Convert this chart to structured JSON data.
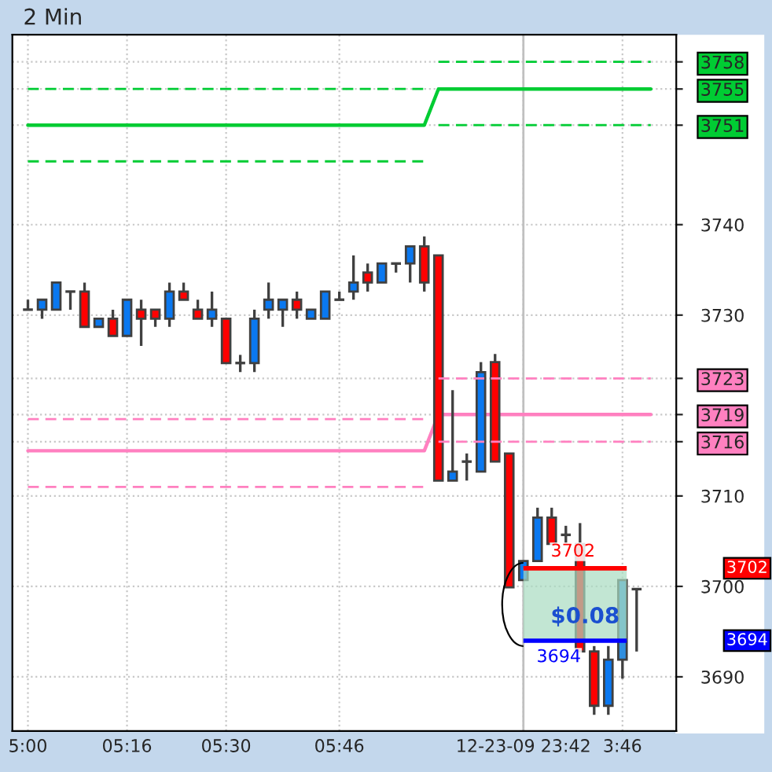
{
  "chart_data": {
    "type": "candlestick",
    "title": "2 Min",
    "categories": [
      "5:00",
      null,
      null,
      null,
      null,
      null,
      null,
      "05:16",
      null,
      null,
      null,
      null,
      null,
      null,
      "05:30",
      null,
      null,
      null,
      null,
      null,
      null,
      null,
      "05:46",
      null,
      null,
      null,
      null,
      null,
      null,
      null,
      null,
      null,
      null,
      null,
      null,
      "12-23-09 23:42",
      null,
      null,
      null,
      null,
      null,
      null,
      "3:46",
      null,
      null
    ],
    "ohlc": [
      [
        3730.6,
        3731.7,
        3730.6,
        3730.6
      ],
      [
        3730.6,
        3731.7,
        3729.6,
        3731.7
      ],
      [
        3730.6,
        3733.6,
        3730.6,
        3733.6
      ],
      [
        3732.6,
        3732.6,
        3730.6,
        3732.6
      ],
      [
        3732.6,
        3733.6,
        3728.7,
        3728.7
      ],
      [
        3728.7,
        3729.6,
        3728.7,
        3729.6
      ],
      [
        3729.6,
        3730.6,
        3727.7,
        3727.7
      ],
      [
        3727.7,
        3731.7,
        3727.7,
        3731.7
      ],
      [
        3730.6,
        3731.7,
        3726.6,
        3729.6
      ],
      [
        3730.6,
        3730.6,
        3728.7,
        3729.6
      ],
      [
        3729.6,
        3733.6,
        3728.7,
        3732.6
      ],
      [
        3732.6,
        3733.6,
        3731.7,
        3731.7
      ],
      [
        3730.6,
        3731.7,
        3729.6,
        3729.6
      ],
      [
        3729.6,
        3732.6,
        3728.7,
        3730.6
      ],
      [
        3729.6,
        3729.6,
        3724.7,
        3724.7
      ],
      [
        3724.7,
        3725.6,
        3723.7,
        3724.7
      ],
      [
        3724.7,
        3730.6,
        3723.7,
        3729.6
      ],
      [
        3730.6,
        3733.6,
        3729.6,
        3731.7
      ],
      [
        3730.6,
        3731.7,
        3728.7,
        3731.7
      ],
      [
        3731.7,
        3732.6,
        3729.6,
        3730.6
      ],
      [
        3729.6,
        3730.6,
        3729.6,
        3730.6
      ],
      [
        3729.6,
        3732.6,
        3729.6,
        3732.6
      ],
      [
        3731.7,
        3732.6,
        3731.7,
        3731.7
      ],
      [
        3732.6,
        3736.6,
        3731.7,
        3733.6
      ],
      [
        3734.7,
        3735.7,
        3732.6,
        3733.6
      ],
      [
        3733.6,
        3735.7,
        3733.6,
        3735.7
      ],
      [
        3735.7,
        3735.7,
        3734.7,
        3735.7
      ],
      [
        3735.7,
        3737.6,
        3733.6,
        3737.6
      ],
      [
        3737.6,
        3738.7,
        3732.6,
        3733.6
      ],
      [
        3736.6,
        3736.6,
        3711.7,
        3711.7
      ],
      [
        3711.7,
        3721.7,
        3711.7,
        3712.7
      ],
      [
        3713.8,
        3714.7,
        3711.7,
        3713.8
      ],
      [
        3712.7,
        3724.8,
        3712.7,
        3723.7
      ],
      [
        3724.8,
        3725.7,
        3713.8,
        3713.8
      ],
      [
        3714.7,
        3714.7,
        3699.9,
        3699.9
      ],
      [
        3700.7,
        3702.8,
        3700.7,
        3702.8
      ],
      [
        3702.8,
        3708.7,
        3702.8,
        3707.6
      ],
      [
        3707.6,
        3708.7,
        3704.7,
        3704.7
      ],
      [
        3705.7,
        3706.7,
        3704.7,
        3705.7
      ],
      [
        3704.7,
        3707.0,
        3692.8,
        3692.8
      ],
      [
        3692.8,
        3693.4,
        3685.8,
        3686.8
      ],
      [
        3686.8,
        3693.4,
        3685.8,
        3691.9
      ],
      [
        3691.9,
        3700.7,
        3689.8,
        3700.7
      ],
      [
        3699.7,
        3699.7,
        3692.8,
        3699.7
      ],
      null
    ],
    "colors": [
      "#404040",
      "#0a78f0",
      "#0a78f0",
      "#404040",
      "#ff0000",
      "#0a78f0",
      "#ff0000",
      "#0a78f0",
      "#ff0000",
      "#ff0000",
      "#0a78f0",
      "#ff0000",
      "#ff0000",
      "#0a78f0",
      "#ff0000",
      "#404040",
      "#0a78f0",
      "#0a78f0",
      "#0a78f0",
      "#ff0000",
      "#0a78f0",
      "#0a78f0",
      "#404040",
      "#0a78f0",
      "#ff0000",
      "#0a78f0",
      "#404040",
      "#0a78f0",
      "#ff0000",
      "#ff0000",
      "#0a78f0",
      "#404040",
      "#0a78f0",
      "#ff0000",
      "#ff0000",
      "#0a78f0",
      "#0a78f0",
      "#ff0000",
      "#404040",
      "#ff0000",
      "#ff0000",
      "#0a78f0",
      "#2f8fe0",
      "#404040",
      null
    ],
    "series": [
      {
        "type": "line",
        "line_style": "solid",
        "color": "#00cc33",
        "values": [
          3751,
          3751,
          3751,
          3751,
          3751,
          3751,
          3751,
          3751,
          3751,
          3751,
          3751,
          3751,
          3751,
          3751,
          3751,
          3751,
          3751,
          3751,
          3751,
          3751,
          3751,
          3751,
          3751,
          3751,
          3751,
          3751,
          3751,
          3751,
          3751,
          3755,
          3755,
          3755,
          3755,
          3755,
          3755,
          3755,
          3755,
          3755,
          3755,
          3755,
          3755,
          3755,
          3755,
          3755,
          3755
        ]
      },
      {
        "type": "line",
        "line_style": "dashed",
        "color": "#00cc33",
        "values": [
          3755,
          3755,
          3755,
          3755,
          3755,
          3755,
          3755,
          3755,
          3755,
          3755,
          3755,
          3755,
          3755,
          3755,
          3755,
          3755,
          3755,
          3755,
          3755,
          3755,
          3755,
          3755,
          3755,
          3755,
          3755,
          3755,
          3755,
          3755,
          3755,
          null,
          null,
          null,
          null,
          null,
          null,
          null,
          null,
          null,
          null,
          null,
          null,
          null,
          null,
          null,
          null
        ]
      },
      {
        "type": "line",
        "line_style": "dashed",
        "color": "#00cc33",
        "values": [
          null,
          null,
          null,
          null,
          null,
          null,
          null,
          null,
          null,
          null,
          null,
          null,
          null,
          null,
          null,
          null,
          null,
          null,
          null,
          null,
          null,
          null,
          null,
          null,
          null,
          null,
          null,
          null,
          null,
          3758,
          3758,
          3758,
          3758,
          3758,
          3758,
          3758,
          3758,
          3758,
          3758,
          3758,
          3758,
          3758,
          3758,
          3758,
          3758
        ]
      },
      {
        "type": "line",
        "line_style": "dashed",
        "color": "#00cc33",
        "values": [
          3747,
          3747,
          3747,
          3747,
          3747,
          3747,
          3747,
          3747,
          3747,
          3747,
          3747,
          3747,
          3747,
          3747,
          3747,
          3747,
          3747,
          3747,
          3747,
          3747,
          3747,
          3747,
          3747,
          3747,
          3747,
          3747,
          3747,
          3747,
          3747,
          null,
          null,
          null,
          null,
          null,
          null,
          null,
          null,
          null,
          null,
          null,
          null,
          null,
          null,
          null,
          null
        ]
      },
      {
        "type": "line",
        "line_style": "dashed",
        "color": "#00cc33",
        "values": [
          null,
          null,
          null,
          null,
          null,
          null,
          null,
          null,
          null,
          null,
          null,
          null,
          null,
          null,
          null,
          null,
          null,
          null,
          null,
          null,
          null,
          null,
          null,
          null,
          null,
          null,
          null,
          null,
          null,
          3751,
          3751,
          3751,
          3751,
          3751,
          3751,
          3751,
          3751,
          3751,
          3751,
          3751,
          3751,
          3751,
          3751,
          3751,
          3751
        ]
      },
      {
        "type": "line",
        "line_style": "solid",
        "color": "#ff80c0",
        "values": [
          3715,
          3715,
          3715,
          3715,
          3715,
          3715,
          3715,
          3715,
          3715,
          3715,
          3715,
          3715,
          3715,
          3715,
          3715,
          3715,
          3715,
          3715,
          3715,
          3715,
          3715,
          3715,
          3715,
          3715,
          3715,
          3715,
          3715,
          3715,
          3715,
          3719,
          3719,
          3719,
          3719,
          3719,
          3719,
          3719,
          3719,
          3719,
          3719,
          3719,
          3719,
          3719,
          3719,
          3719,
          3719
        ]
      },
      {
        "type": "line",
        "line_style": "dashed",
        "color": "#ff80c0",
        "values": [
          3718.5,
          3718.5,
          3718.5,
          3718.5,
          3718.5,
          3718.5,
          3718.5,
          3718.5,
          3718.5,
          3718.5,
          3718.5,
          3718.5,
          3718.5,
          3718.5,
          3718.5,
          3718.5,
          3718.5,
          3718.5,
          3718.5,
          3718.5,
          3718.5,
          3718.5,
          3718.5,
          3718.5,
          3718.5,
          3718.5,
          3718.5,
          3718.5,
          3718.5,
          null,
          null,
          null,
          null,
          null,
          null,
          null,
          null,
          null,
          null,
          null,
          null,
          null,
          null,
          null,
          null
        ]
      },
      {
        "type": "line",
        "line_style": "dashed",
        "color": "#ff80c0",
        "values": [
          null,
          null,
          null,
          null,
          null,
          null,
          null,
          null,
          null,
          null,
          null,
          null,
          null,
          null,
          null,
          null,
          null,
          null,
          null,
          null,
          null,
          null,
          null,
          null,
          null,
          null,
          null,
          null,
          null,
          3723,
          3723,
          3723,
          3723,
          3723,
          3723,
          3723,
          3723,
          3723,
          3723,
          3723,
          3723,
          3723,
          3723,
          3723,
          3723
        ]
      },
      {
        "type": "line",
        "line_style": "dashed",
        "color": "#ff80c0",
        "values": [
          3711,
          3711,
          3711,
          3711,
          3711,
          3711,
          3711,
          3711,
          3711,
          3711,
          3711,
          3711,
          3711,
          3711,
          3711,
          3711,
          3711,
          3711,
          3711,
          3711,
          3711,
          3711,
          3711,
          3711,
          3711,
          3711,
          3711,
          3711,
          3711,
          null,
          null,
          null,
          null,
          null,
          null,
          null,
          null,
          null,
          null,
          null,
          null,
          null,
          null,
          null,
          null
        ]
      },
      {
        "type": "line",
        "line_style": "dashed",
        "color": "#ff80c0",
        "values": [
          null,
          null,
          null,
          null,
          null,
          null,
          null,
          null,
          null,
          null,
          null,
          null,
          null,
          null,
          null,
          null,
          null,
          null,
          null,
          null,
          null,
          null,
          null,
          null,
          null,
          null,
          null,
          null,
          null,
          3716,
          3716,
          3716,
          3716,
          3716,
          3716,
          3716,
          3716,
          3716,
          3716,
          3716,
          3716,
          3716,
          3716,
          3716,
          3716
        ]
      }
    ],
    "ref_lines": [
      {
        "axis": "y",
        "value": 3702,
        "label": "3702",
        "color": "#ff0000"
      },
      {
        "axis": "y",
        "value": 3694,
        "label": "3694",
        "color": "#0000ff"
      },
      {
        "axis": "x",
        "value": "12-23-09 23:42",
        "color": "#c0c0c0"
      }
    ],
    "bands": [
      {
        "axis": "y",
        "from": 3694,
        "to": 3702,
        "label": "$0.08",
        "color": "#a8dcc0"
      }
    ],
    "ylim": [
      3684,
      3761
    ],
    "yticks": [
      3690,
      3700,
      3710,
      3716,
      3719,
      3723,
      3730,
      3740,
      3751,
      3755,
      3758
    ],
    "grid": true
  }
}
